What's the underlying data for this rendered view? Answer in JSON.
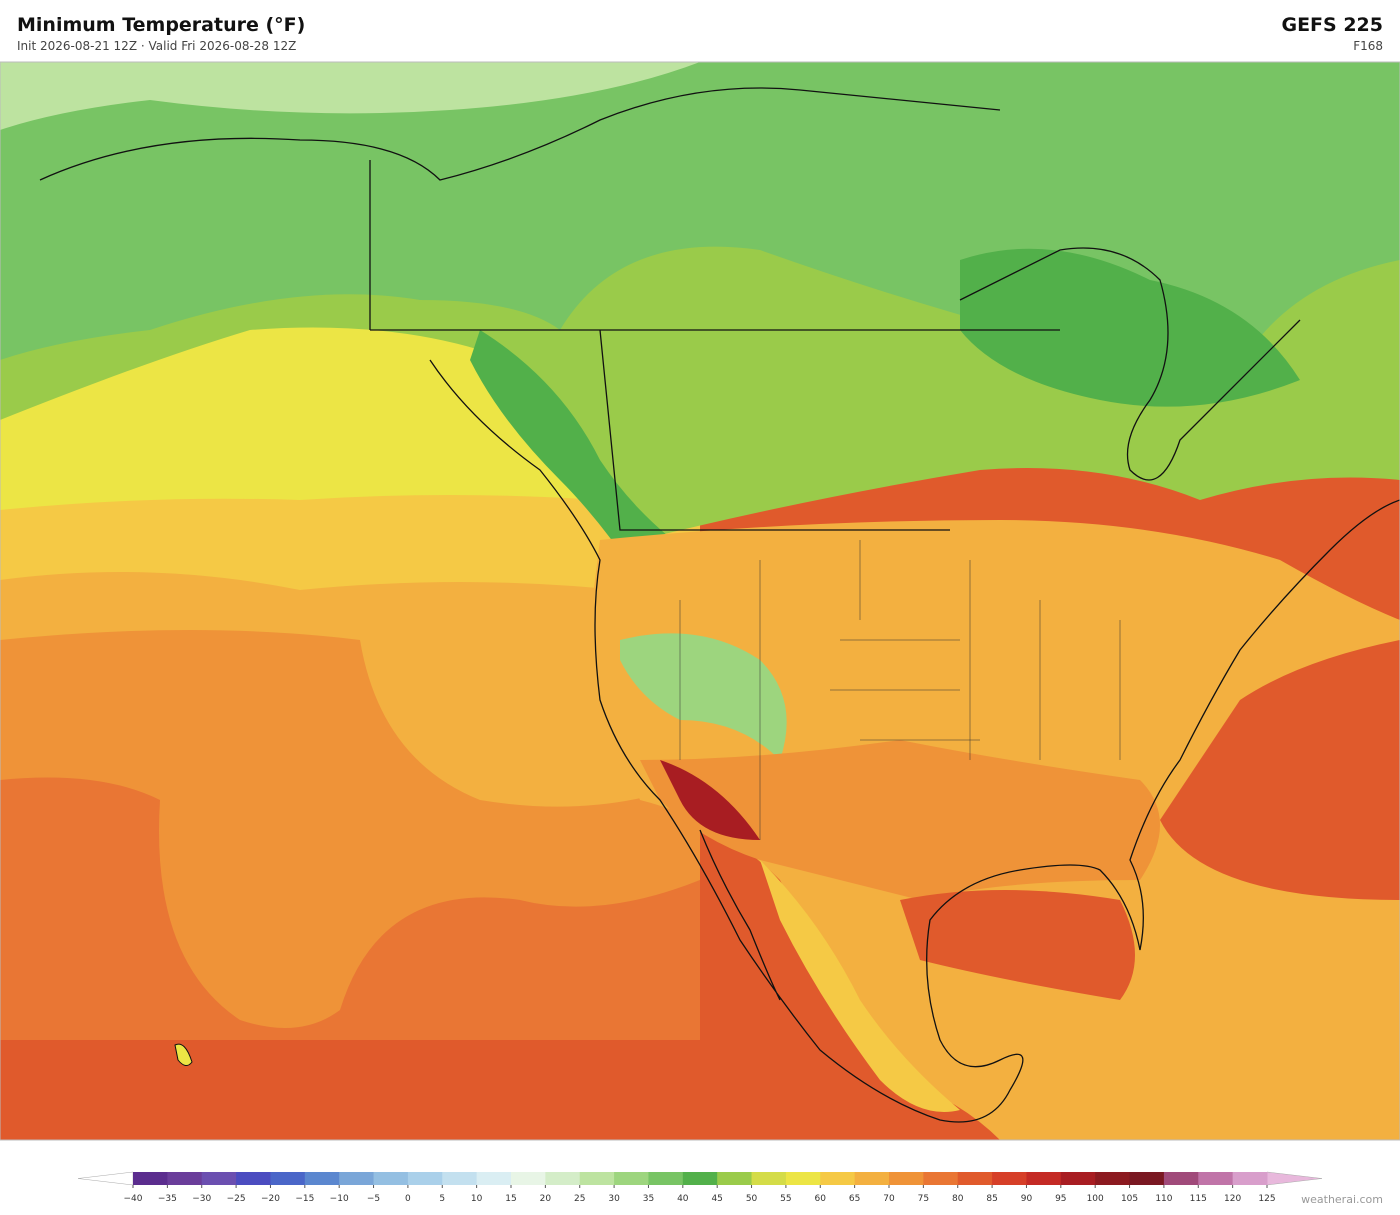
{
  "header": {
    "title": "Minimum Temperature  (°F)",
    "subtitle": "Init 2026-08-21 12Z  ·  Valid Fri 2026-08-28 12Z",
    "model": "GEFS  225",
    "forecast_hour": "F168"
  },
  "colorbar": {
    "ticks": [
      {
        "value": -40,
        "label": "−40"
      },
      {
        "value": -35,
        "label": "−35"
      },
      {
        "value": -30,
        "label": "−30"
      },
      {
        "value": -25,
        "label": "−25"
      },
      {
        "value": -20,
        "label": "−20"
      },
      {
        "value": -15,
        "label": "−15"
      },
      {
        "value": -10,
        "label": "−10"
      },
      {
        "value": -5,
        "label": "−5"
      },
      0,
      5,
      10,
      15,
      20,
      25,
      30,
      35,
      40,
      45,
      50,
      55,
      60,
      65,
      70,
      75,
      80,
      85,
      90,
      95,
      100,
      105,
      110,
      115,
      120,
      125
    ],
    "colors": [
      "#5b2d8e",
      "#6a3d9a",
      "#6b4fb0",
      "#4b4cc0",
      "#4a66c8",
      "#5b87cf",
      "#7aa6d8",
      "#94bfe2",
      "#aad0ea",
      "#c3e0ef",
      "#daeef3",
      "#e8f5e6",
      "#d4edc8",
      "#bde3a0",
      "#9dd57e",
      "#78c464",
      "#52b04a",
      "#9acb4a",
      "#d4dc48",
      "#ece545",
      "#f5c945",
      "#f3b040",
      "#ef9338",
      "#e97634",
      "#e05a2c",
      "#d63f28",
      "#c42a25",
      "#a81d22",
      "#8c1a20",
      "#7a1822",
      "#a04a7a",
      "#c074a8",
      "#d89ecb"
    ],
    "under_color": "#ffffff",
    "over_color": "#e8b8dc"
  },
  "footer": {
    "credit": "weatherai.com"
  }
}
